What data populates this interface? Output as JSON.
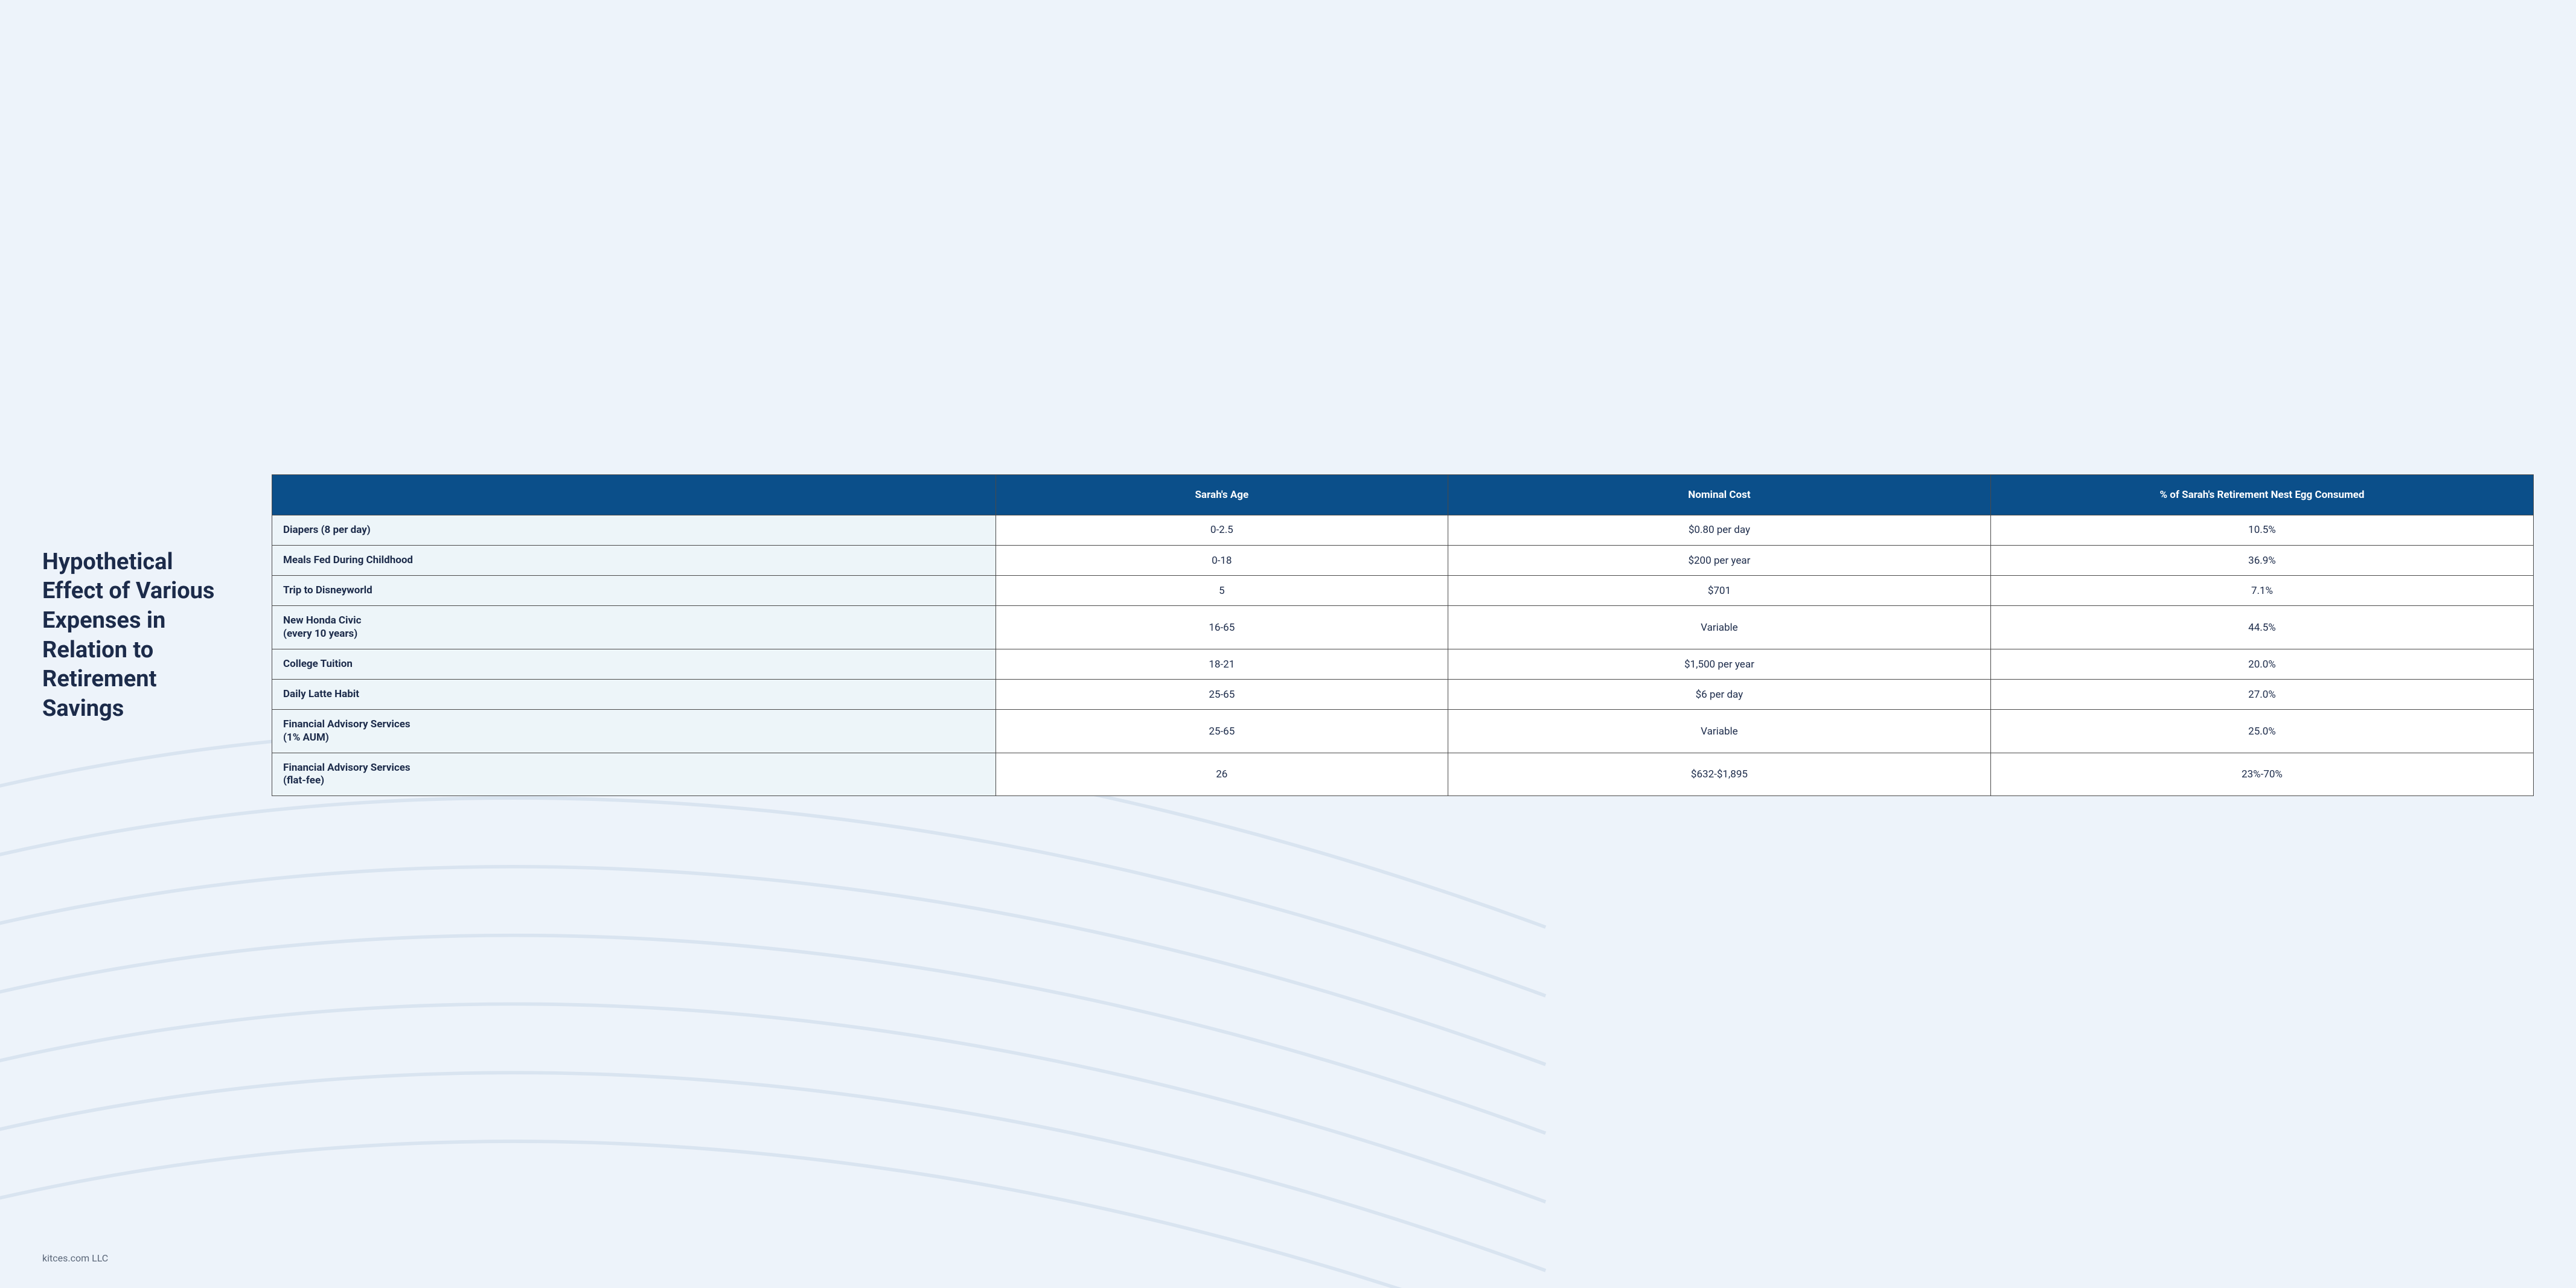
{
  "title": "Hypothetical Effect of Various Expenses in Relation to Retirement Savings",
  "footer": "kitces.com LLC",
  "table": {
    "type": "table",
    "header_bg": "#0b4f8a",
    "header_text_color": "#ffffff",
    "row_label_bg": "#edf5f9",
    "cell_bg": "#ffffff",
    "border_color": "#4a4a4a",
    "text_color": "#1c2b4a",
    "font_size_header": 17,
    "font_size_body": 17,
    "columns": [
      {
        "label": "",
        "width_pct": 32,
        "align": "left"
      },
      {
        "label": "Sarah's Age",
        "width_pct": 20,
        "align": "center"
      },
      {
        "label": "Nominal Cost",
        "width_pct": 24,
        "align": "center"
      },
      {
        "label": "% of Sarah's Retirement Nest Egg Consumed",
        "width_pct": 24,
        "align": "center"
      }
    ],
    "rows": [
      {
        "label": "Diapers (8 per day)",
        "age": "0-2.5",
        "cost": "$0.80 per day",
        "pct": "10.5%"
      },
      {
        "label": "Meals Fed During Childhood",
        "age": "0-18",
        "cost": "$200 per year",
        "pct": "36.9%"
      },
      {
        "label": "Trip to Disneyworld",
        "age": "5",
        "cost": "$701",
        "pct": "7.1%"
      },
      {
        "label": "New Honda Civic\n(every 10 years)",
        "age": "16-65",
        "cost": "Variable",
        "pct": "44.5%"
      },
      {
        "label": "College Tuition",
        "age": "18-21",
        "cost": "$1,500 per year",
        "pct": "20.0%"
      },
      {
        "label": "Daily Latte Habit",
        "age": "25-65",
        "cost": "$6 per day",
        "pct": "27.0%"
      },
      {
        "label": "Financial Advisory Services\n(1% AUM)",
        "age": "25-65",
        "cost": "Variable",
        "pct": "25.0%"
      },
      {
        "label": "Financial Advisory Services\n(flat-fee)",
        "age": "26",
        "cost": "$632-$1,895",
        "pct": "23%-70%"
      }
    ]
  },
  "background": {
    "page_bg": "#edf3fa",
    "line_stroke": "#d9e4f0",
    "line_width": 2
  }
}
